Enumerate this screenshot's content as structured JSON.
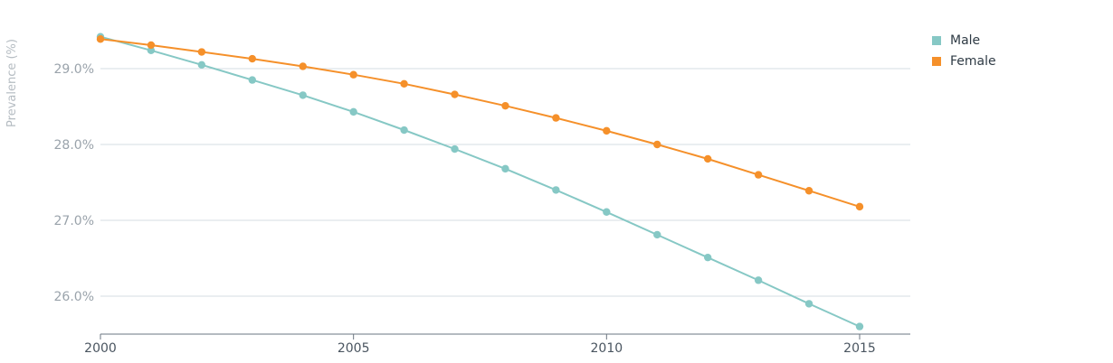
{
  "chart_data": {
    "type": "line",
    "x": [
      2000,
      2001,
      2002,
      2003,
      2004,
      2005,
      2006,
      2007,
      2008,
      2009,
      2010,
      2011,
      2012,
      2013,
      2014,
      2015
    ],
    "series": [
      {
        "name": "Male",
        "color": "#86c8c5",
        "values": [
          29.42,
          29.24,
          29.05,
          28.85,
          28.65,
          28.43,
          28.19,
          27.94,
          27.68,
          27.4,
          27.11,
          26.81,
          26.51,
          26.21,
          25.9,
          25.6
        ]
      },
      {
        "name": "Female",
        "color": "#f5902a",
        "values": [
          29.39,
          29.31,
          29.22,
          29.13,
          29.03,
          28.92,
          28.8,
          28.66,
          28.51,
          28.35,
          28.18,
          28.0,
          27.81,
          27.6,
          27.39,
          27.18
        ]
      }
    ],
    "ylabel": "Prevalence (%)",
    "xlabel": "",
    "y_ticks": [
      {
        "value": 26.0,
        "label": "26.0%"
      },
      {
        "value": 27.0,
        "label": "27.0%"
      },
      {
        "value": 28.0,
        "label": "28.0%"
      },
      {
        "value": 29.0,
        "label": "29.0%"
      }
    ],
    "x_ticks": [
      {
        "value": 2000,
        "label": "2000"
      },
      {
        "value": 2005,
        "label": "2005"
      },
      {
        "value": 2010,
        "label": "2010"
      },
      {
        "value": 2015,
        "label": "2015"
      }
    ],
    "xlim": [
      2000,
      2015
    ],
    "ylim": [
      25.5,
      29.5
    ],
    "grid": true,
    "legend_position": "top-right"
  }
}
